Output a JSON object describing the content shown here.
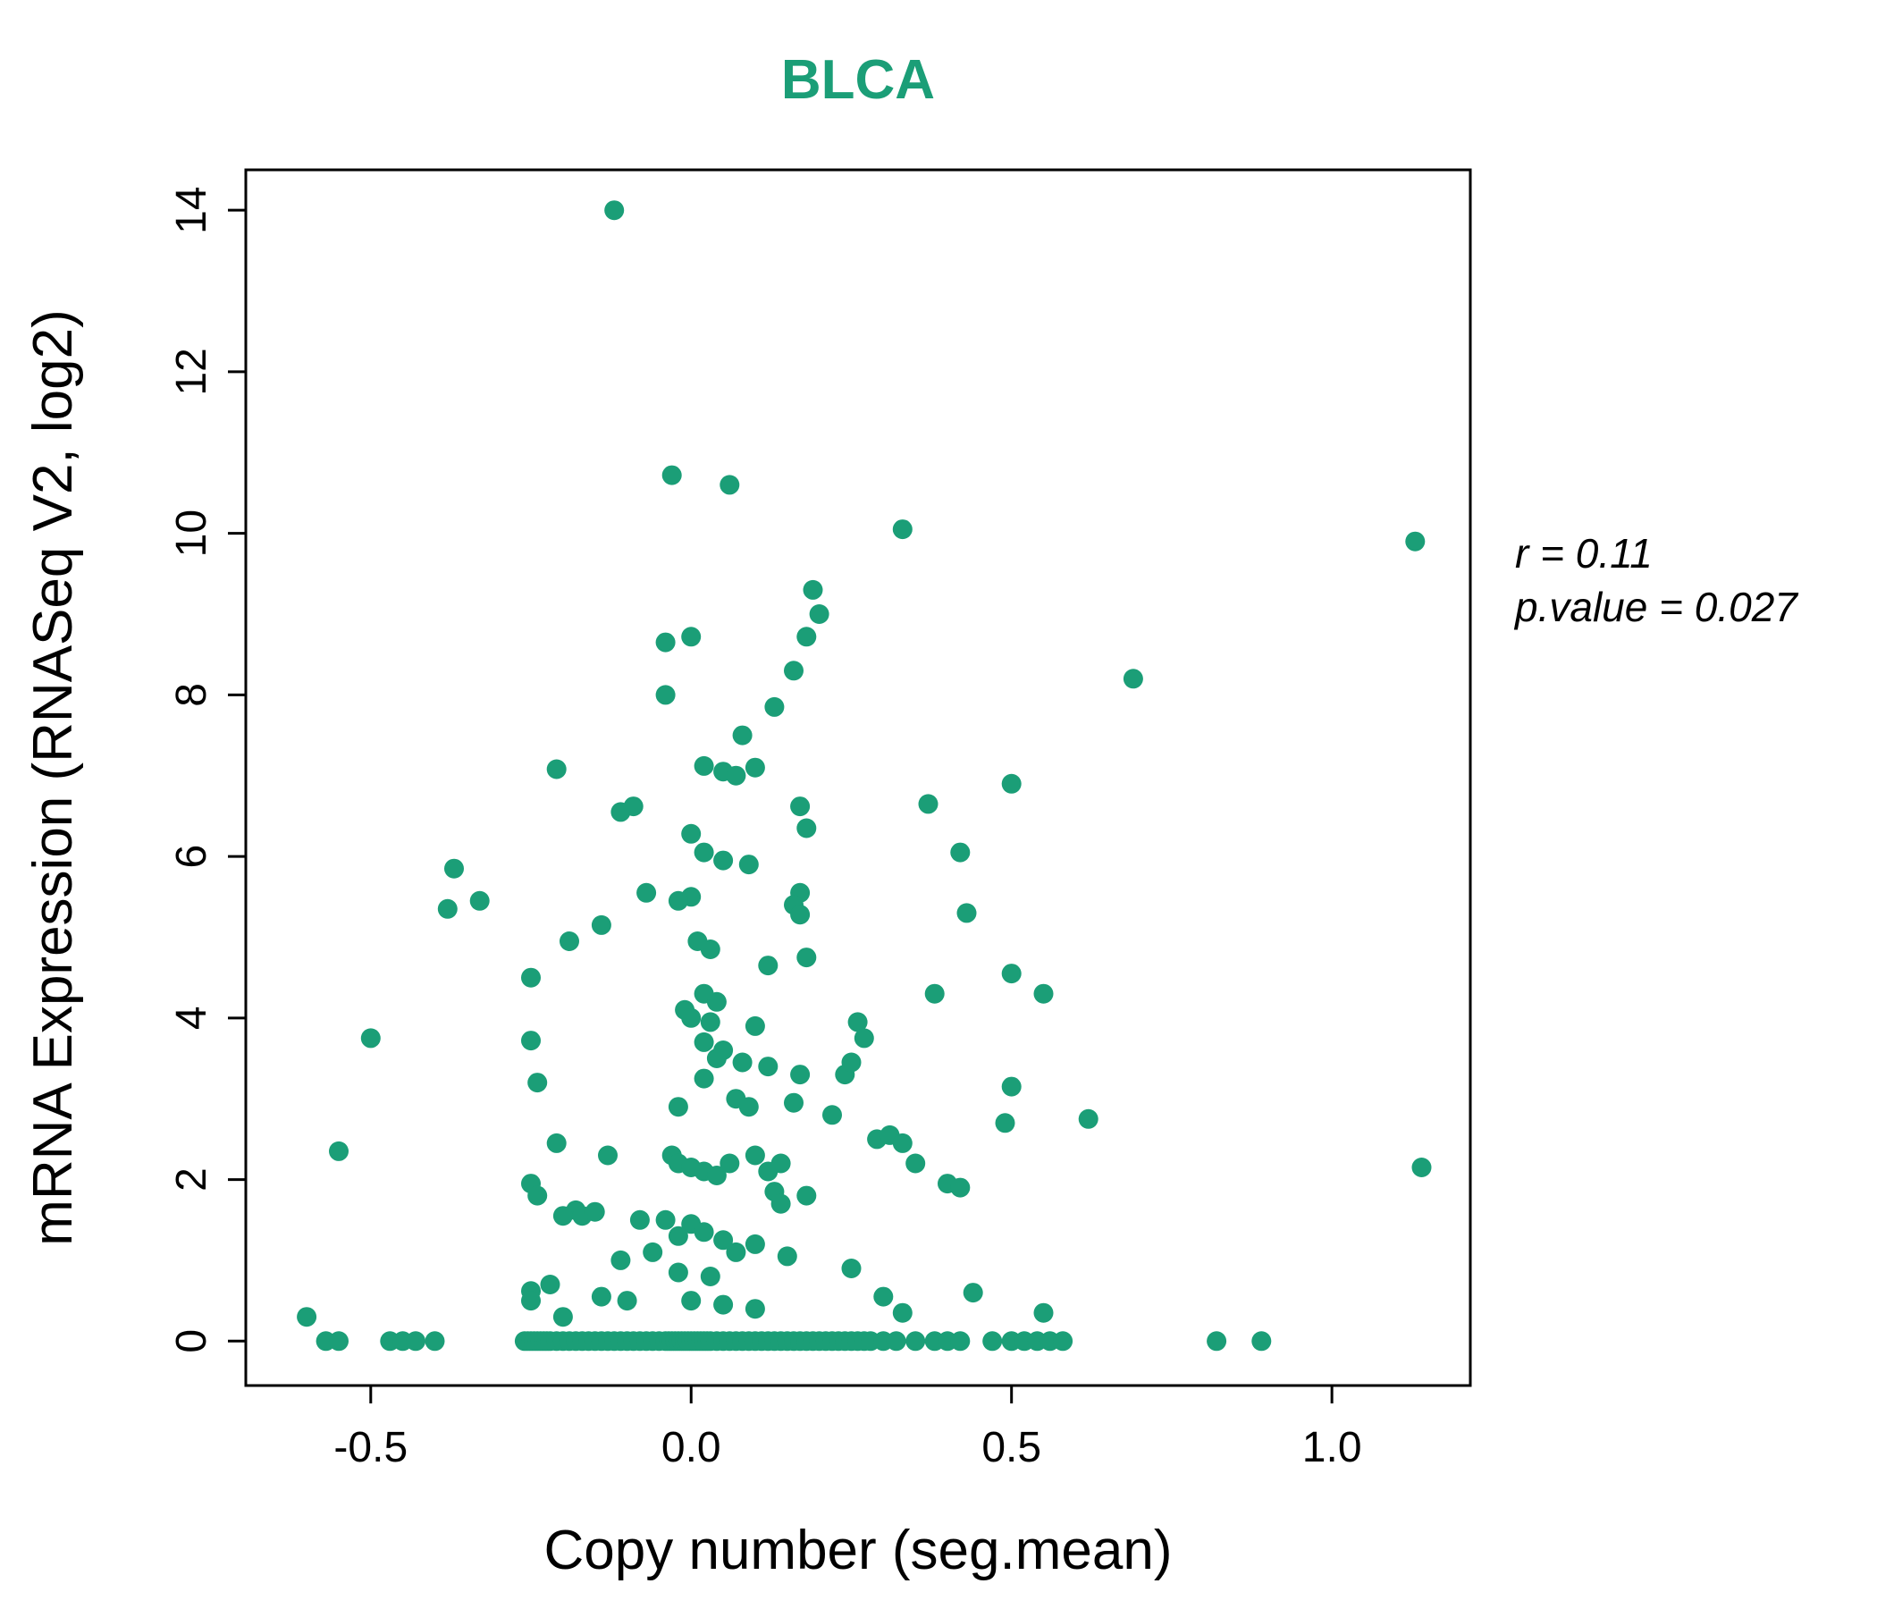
{
  "title": "BLCA",
  "annotation": {
    "line1": "r = 0.11",
    "line2": "p.value = 0.027"
  },
  "chart_data": {
    "type": "scatter",
    "title": "BLCA",
    "xlabel": "Copy number (seg.mean)",
    "ylabel": "mRNA Expression (RNASeq V2, log2)",
    "xlim": [
      -0.695,
      1.216
    ],
    "ylim": [
      -0.55,
      14.5
    ],
    "xticks": [
      -0.5,
      0.0,
      0.5,
      1.0
    ],
    "xtick_labels": [
      "-0.5",
      "0.0",
      "0.5",
      "1.0"
    ],
    "yticks": [
      0,
      2,
      4,
      6,
      8,
      10,
      12,
      14
    ],
    "ytick_labels": [
      "0",
      "2",
      "4",
      "6",
      "8",
      "10",
      "12",
      "14"
    ],
    "grid": false,
    "legend": "none",
    "point_color": "#1B9E77",
    "title_color": "#1B9E77",
    "r": 0.11,
    "p_value": 0.027,
    "points": [
      [
        -0.12,
        14.0
      ],
      [
        -0.03,
        10.72
      ],
      [
        0.06,
        10.6
      ],
      [
        0.33,
        10.05
      ],
      [
        1.13,
        9.9
      ],
      [
        0.19,
        9.3
      ],
      [
        0.2,
        9.0
      ],
      [
        0.18,
        8.72
      ],
      [
        -0.04,
        8.65
      ],
      [
        0.0,
        8.72
      ],
      [
        0.69,
        8.2
      ],
      [
        -0.04,
        8.0
      ],
      [
        0.16,
        8.3
      ],
      [
        0.13,
        7.85
      ],
      [
        0.08,
        7.5
      ],
      [
        0.1,
        7.1
      ],
      [
        0.05,
        7.05
      ],
      [
        0.07,
        7.0
      ],
      [
        0.02,
        7.12
      ],
      [
        -0.21,
        7.08
      ],
      [
        0.5,
        6.9
      ],
      [
        0.37,
        6.65
      ],
      [
        -0.09,
        6.62
      ],
      [
        -0.11,
        6.55
      ],
      [
        0.17,
        6.62
      ],
      [
        0.18,
        6.35
      ],
      [
        0.42,
        6.05
      ],
      [
        0.0,
        6.28
      ],
      [
        0.02,
        6.05
      ],
      [
        0.05,
        5.95
      ],
      [
        0.09,
        5.9
      ],
      [
        -0.37,
        5.85
      ],
      [
        -0.33,
        5.45
      ],
      [
        -0.38,
        5.35
      ],
      [
        -0.07,
        5.55
      ],
      [
        0.0,
        5.5
      ],
      [
        -0.02,
        5.45
      ],
      [
        0.17,
        5.55
      ],
      [
        0.16,
        5.4
      ],
      [
        0.17,
        5.28
      ],
      [
        0.43,
        5.3
      ],
      [
        -0.14,
        5.15
      ],
      [
        -0.19,
        4.95
      ],
      [
        0.01,
        4.95
      ],
      [
        0.03,
        4.85
      ],
      [
        0.12,
        4.65
      ],
      [
        0.18,
        4.75
      ],
      [
        -0.25,
        4.5
      ],
      [
        0.5,
        4.55
      ],
      [
        0.55,
        4.3
      ],
      [
        0.38,
        4.3
      ],
      [
        0.02,
        4.3
      ],
      [
        0.04,
        4.2
      ],
      [
        -0.01,
        4.1
      ],
      [
        0.0,
        4.0
      ],
      [
        0.03,
        3.95
      ],
      [
        0.1,
        3.9
      ],
      [
        0.26,
        3.95
      ],
      [
        0.27,
        3.75
      ],
      [
        -0.5,
        3.75
      ],
      [
        -0.25,
        3.72
      ],
      [
        0.02,
        3.7
      ],
      [
        0.05,
        3.6
      ],
      [
        0.04,
        3.5
      ],
      [
        0.08,
        3.45
      ],
      [
        0.12,
        3.4
      ],
      [
        0.17,
        3.3
      ],
      [
        0.02,
        3.25
      ],
      [
        -0.24,
        3.2
      ],
      [
        0.24,
        3.3
      ],
      [
        0.25,
        3.45
      ],
      [
        0.5,
        3.15
      ],
      [
        0.07,
        3.0
      ],
      [
        0.09,
        2.9
      ],
      [
        -0.02,
        2.9
      ],
      [
        0.16,
        2.95
      ],
      [
        0.22,
        2.8
      ],
      [
        0.62,
        2.75
      ],
      [
        0.49,
        2.7
      ],
      [
        0.29,
        2.5
      ],
      [
        0.31,
        2.55
      ],
      [
        0.33,
        2.45
      ],
      [
        -0.55,
        2.35
      ],
      [
        -0.21,
        2.45
      ],
      [
        -0.13,
        2.3
      ],
      [
        -0.03,
        2.3
      ],
      [
        -0.02,
        2.2
      ],
      [
        0.0,
        2.15
      ],
      [
        0.02,
        2.1
      ],
      [
        0.04,
        2.05
      ],
      [
        0.06,
        2.2
      ],
      [
        0.1,
        2.3
      ],
      [
        0.12,
        2.1
      ],
      [
        0.14,
        2.2
      ],
      [
        1.14,
        2.15
      ],
      [
        0.35,
        2.2
      ],
      [
        0.4,
        1.95
      ],
      [
        0.42,
        1.9
      ],
      [
        -0.25,
        1.95
      ],
      [
        -0.24,
        1.8
      ],
      [
        0.13,
        1.85
      ],
      [
        0.14,
        1.7
      ],
      [
        0.18,
        1.8
      ],
      [
        -0.18,
        1.62
      ],
      [
        -0.17,
        1.55
      ],
      [
        -0.2,
        1.55
      ],
      [
        -0.15,
        1.6
      ],
      [
        -0.08,
        1.5
      ],
      [
        -0.04,
        1.5
      ],
      [
        0.0,
        1.45
      ],
      [
        0.02,
        1.35
      ],
      [
        -0.02,
        1.3
      ],
      [
        0.05,
        1.25
      ],
      [
        0.1,
        1.2
      ],
      [
        0.07,
        1.1
      ],
      [
        -0.06,
        1.1
      ],
      [
        -0.11,
        1.0
      ],
      [
        0.15,
        1.05
      ],
      [
        0.25,
        0.9
      ],
      [
        -0.02,
        0.85
      ],
      [
        0.03,
        0.8
      ],
      [
        -0.22,
        0.7
      ],
      [
        -0.25,
        0.62
      ],
      [
        -0.25,
        0.5
      ],
      [
        -0.14,
        0.55
      ],
      [
        -0.1,
        0.5
      ],
      [
        0.0,
        0.5
      ],
      [
        0.05,
        0.45
      ],
      [
        0.1,
        0.4
      ],
      [
        -0.6,
        0.3
      ],
      [
        -0.2,
        0.3
      ],
      [
        0.3,
        0.55
      ],
      [
        0.33,
        0.35
      ],
      [
        0.44,
        0.6
      ],
      [
        0.55,
        0.35
      ],
      [
        -0.57,
        0
      ],
      [
        -0.55,
        0
      ],
      [
        -0.47,
        0
      ],
      [
        -0.45,
        0
      ],
      [
        -0.43,
        0
      ],
      [
        -0.4,
        0
      ],
      [
        -0.26,
        0
      ],
      [
        -0.255,
        0
      ],
      [
        -0.25,
        0
      ],
      [
        -0.245,
        0
      ],
      [
        -0.24,
        0
      ],
      [
        -0.235,
        0
      ],
      [
        -0.23,
        0
      ],
      [
        -0.225,
        0
      ],
      [
        -0.22,
        0
      ],
      [
        -0.21,
        0
      ],
      [
        -0.2,
        0
      ],
      [
        -0.19,
        0
      ],
      [
        -0.18,
        0
      ],
      [
        -0.17,
        0
      ],
      [
        -0.16,
        0
      ],
      [
        -0.15,
        0
      ],
      [
        -0.14,
        0
      ],
      [
        -0.13,
        0
      ],
      [
        -0.12,
        0
      ],
      [
        -0.11,
        0
      ],
      [
        -0.1,
        0
      ],
      [
        -0.09,
        0
      ],
      [
        -0.08,
        0
      ],
      [
        -0.07,
        0
      ],
      [
        -0.06,
        0
      ],
      [
        -0.05,
        0
      ],
      [
        -0.04,
        0
      ],
      [
        -0.035,
        0
      ],
      [
        -0.03,
        0
      ],
      [
        -0.025,
        0
      ],
      [
        -0.02,
        0
      ],
      [
        -0.015,
        0
      ],
      [
        -0.01,
        0
      ],
      [
        -0.005,
        0
      ],
      [
        0.0,
        0
      ],
      [
        0.005,
        0
      ],
      [
        0.01,
        0
      ],
      [
        0.015,
        0
      ],
      [
        0.02,
        0
      ],
      [
        0.025,
        0
      ],
      [
        0.03,
        0
      ],
      [
        0.04,
        0
      ],
      [
        0.05,
        0
      ],
      [
        0.06,
        0
      ],
      [
        0.07,
        0
      ],
      [
        0.08,
        0
      ],
      [
        0.09,
        0
      ],
      [
        0.1,
        0
      ],
      [
        0.11,
        0
      ],
      [
        0.12,
        0
      ],
      [
        0.13,
        0
      ],
      [
        0.14,
        0
      ],
      [
        0.15,
        0
      ],
      [
        0.16,
        0
      ],
      [
        0.17,
        0
      ],
      [
        0.18,
        0
      ],
      [
        0.19,
        0
      ],
      [
        0.2,
        0
      ],
      [
        0.21,
        0
      ],
      [
        0.22,
        0
      ],
      [
        0.23,
        0
      ],
      [
        0.24,
        0
      ],
      [
        0.25,
        0
      ],
      [
        0.26,
        0
      ],
      [
        0.27,
        0
      ],
      [
        0.28,
        0
      ],
      [
        0.3,
        0
      ],
      [
        0.32,
        0
      ],
      [
        0.35,
        0
      ],
      [
        0.38,
        0
      ],
      [
        0.4,
        0
      ],
      [
        0.42,
        0
      ],
      [
        0.47,
        0
      ],
      [
        0.5,
        0
      ],
      [
        0.52,
        0
      ],
      [
        0.54,
        0
      ],
      [
        0.56,
        0
      ],
      [
        0.58,
        0
      ],
      [
        0.82,
        0
      ],
      [
        0.89,
        0
      ]
    ]
  }
}
